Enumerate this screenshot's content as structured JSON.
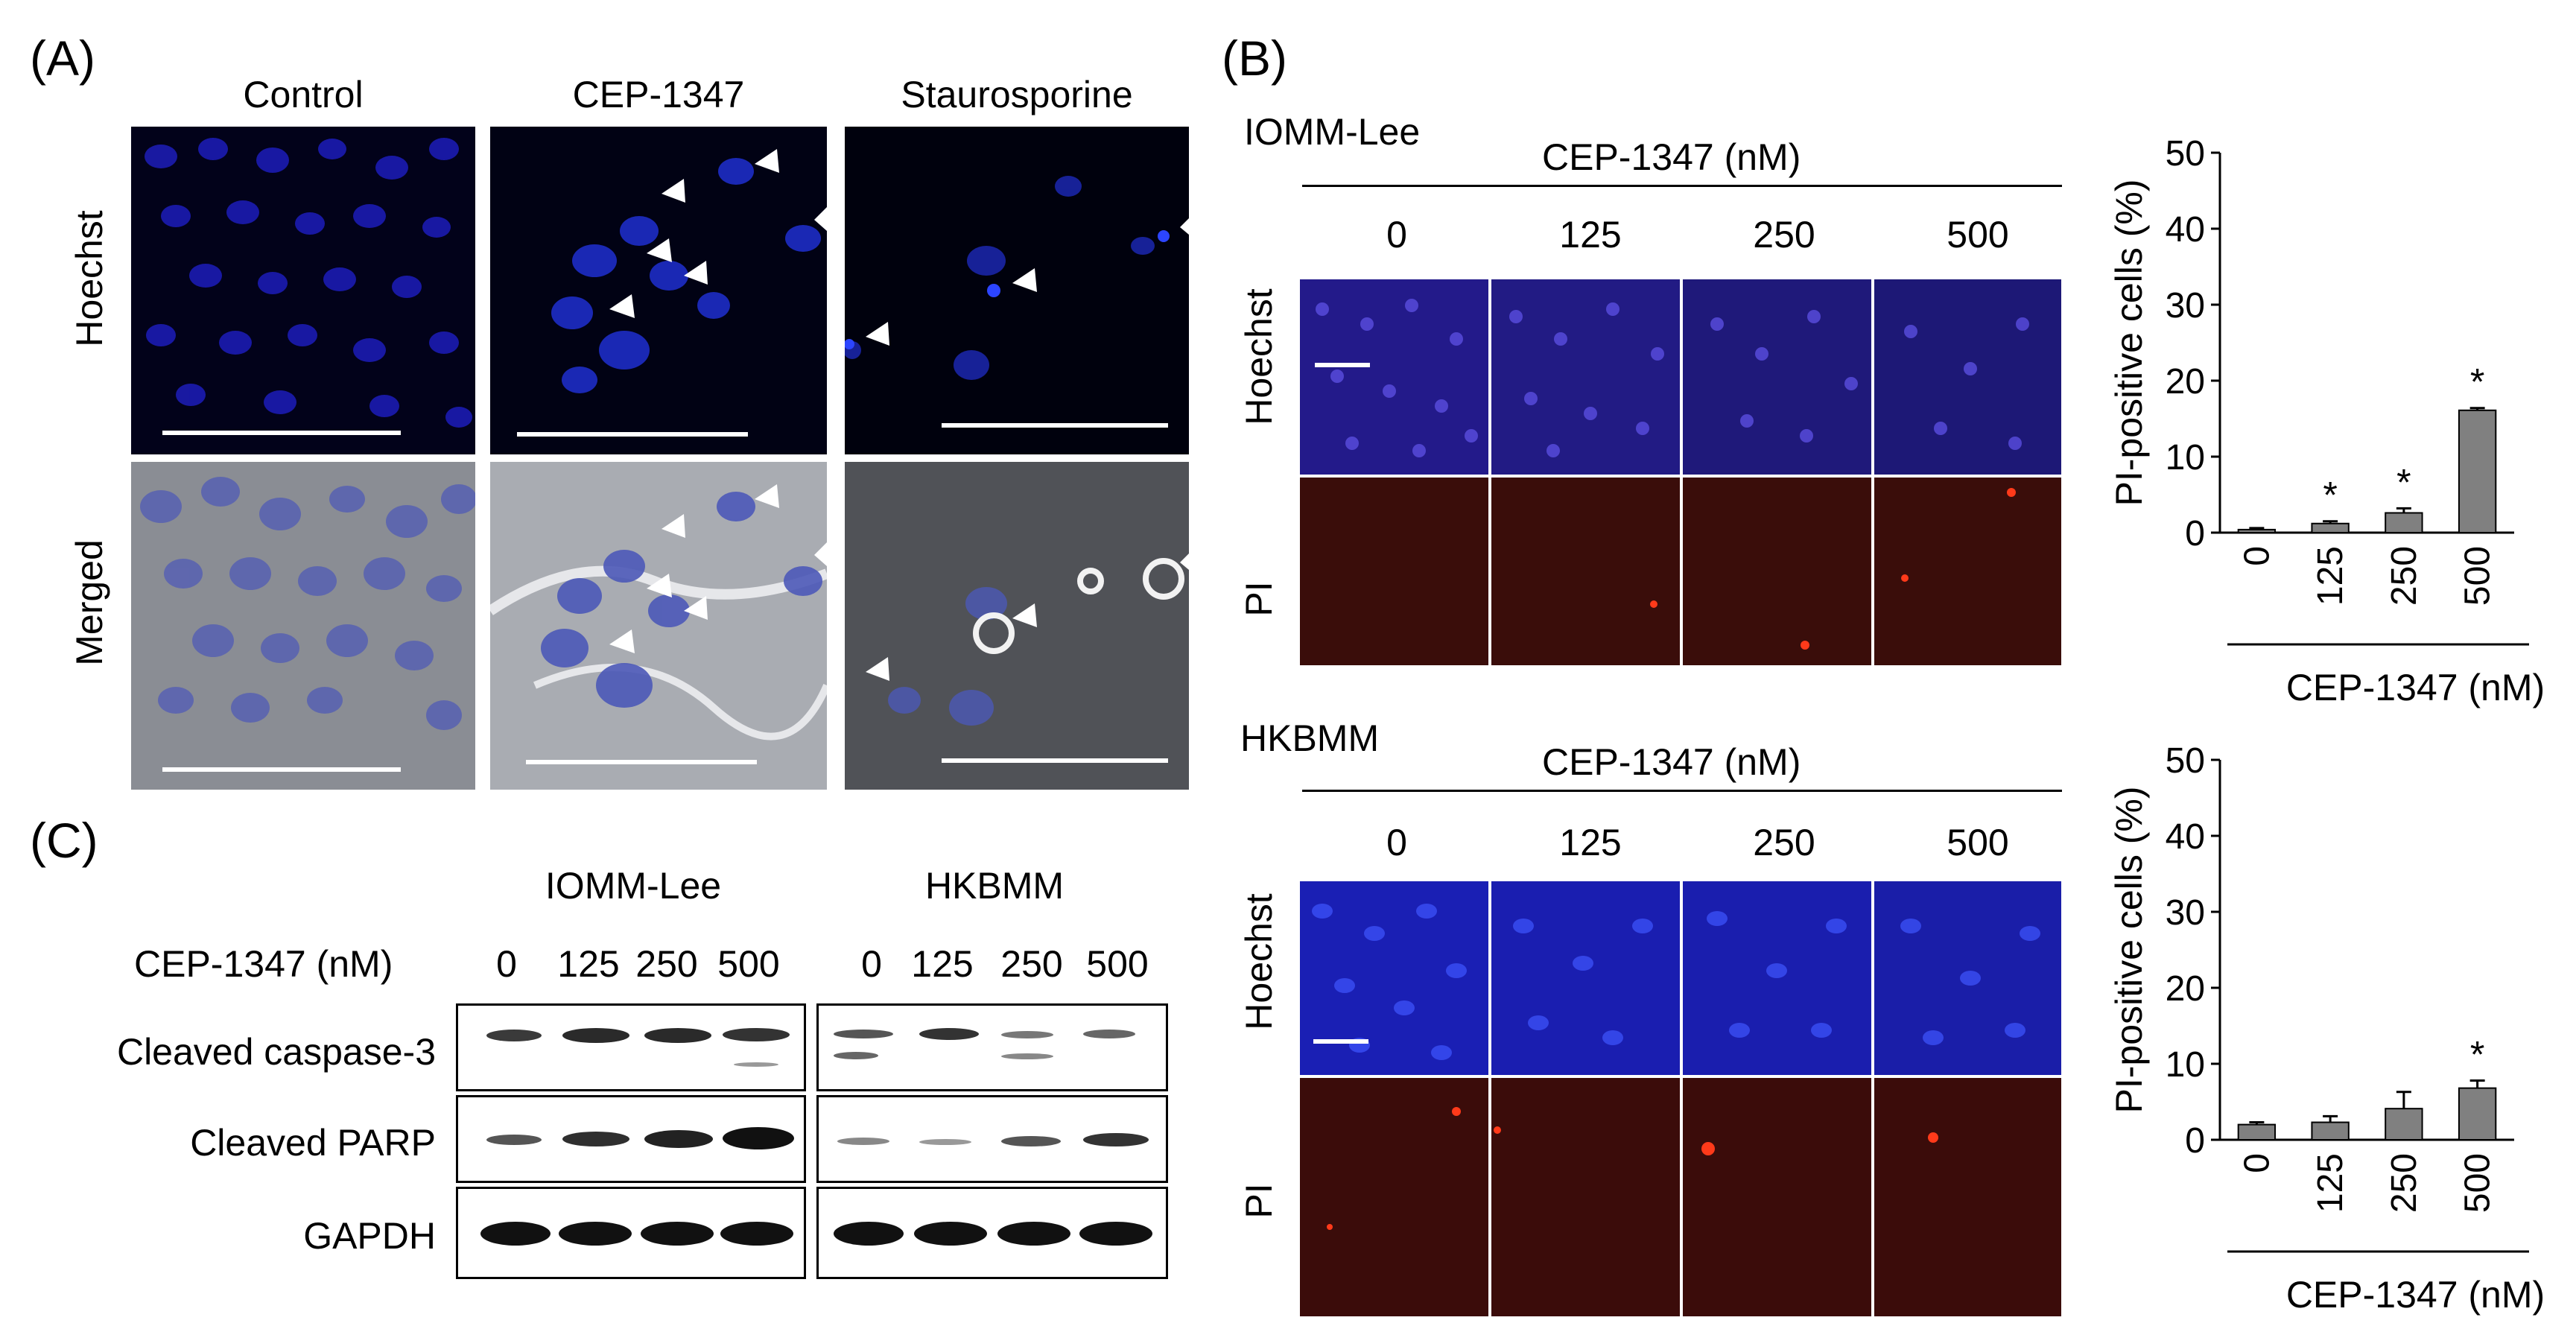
{
  "panelA": {
    "letter": "(A)",
    "columns": [
      "Control",
      "CEP-1347",
      "Staurosporine"
    ],
    "rows": [
      "Hoechst",
      "Merged"
    ]
  },
  "panelB": {
    "letter": "(B)",
    "blocks": [
      {
        "cell_line": "IOMM-Lee",
        "header": "CEP-1347 (nM)",
        "doses": [
          "0",
          "125",
          "250",
          "500"
        ],
        "rows": [
          "Hoechst",
          "PI"
        ]
      },
      {
        "cell_line": "HKBMM",
        "header": "CEP-1347 (nM)",
        "doses": [
          "0",
          "125",
          "250",
          "500"
        ],
        "rows": [
          "Hoechst",
          "PI"
        ]
      }
    ]
  },
  "panelC": {
    "letter": "(C)",
    "groups": [
      "IOMM-Lee",
      "HKBMM"
    ],
    "dose_label": "CEP-1347 (nM)",
    "doses": [
      "0",
      "125",
      "250",
      "500"
    ],
    "rows": [
      "Cleaved caspase-3",
      "Cleaved PARP",
      "GAPDH"
    ]
  },
  "chart_data": [
    {
      "type": "bar",
      "categories": [
        "0",
        "125",
        "250",
        "500"
      ],
      "values": [
        0.4,
        1.2,
        2.6,
        16.1
      ],
      "errors": [
        0.2,
        0.3,
        0.6,
        0.3
      ],
      "significant": [
        "",
        "*",
        "*",
        "*"
      ],
      "yticks": [
        "0",
        "10",
        "20",
        "30",
        "40",
        "50"
      ],
      "ylim": [
        0,
        50
      ],
      "ylabel": "PI-positive cells (%)",
      "xlabel": "CEP-1347 (nM)",
      "bar_color": "#808080"
    },
    {
      "type": "bar",
      "categories": [
        "0",
        "125",
        "250",
        "500"
      ],
      "values": [
        2.0,
        2.3,
        4.1,
        6.8
      ],
      "errors": [
        0.3,
        0.8,
        2.2,
        1.0
      ],
      "significant": [
        "",
        "",
        "",
        "*"
      ],
      "yticks": [
        "0",
        "10",
        "20",
        "30",
        "40",
        "50"
      ],
      "ylim": [
        0,
        50
      ],
      "ylabel": "PI-positive cells (%)",
      "xlabel": "CEP-1347 (nM)",
      "bar_color": "#808080"
    }
  ]
}
